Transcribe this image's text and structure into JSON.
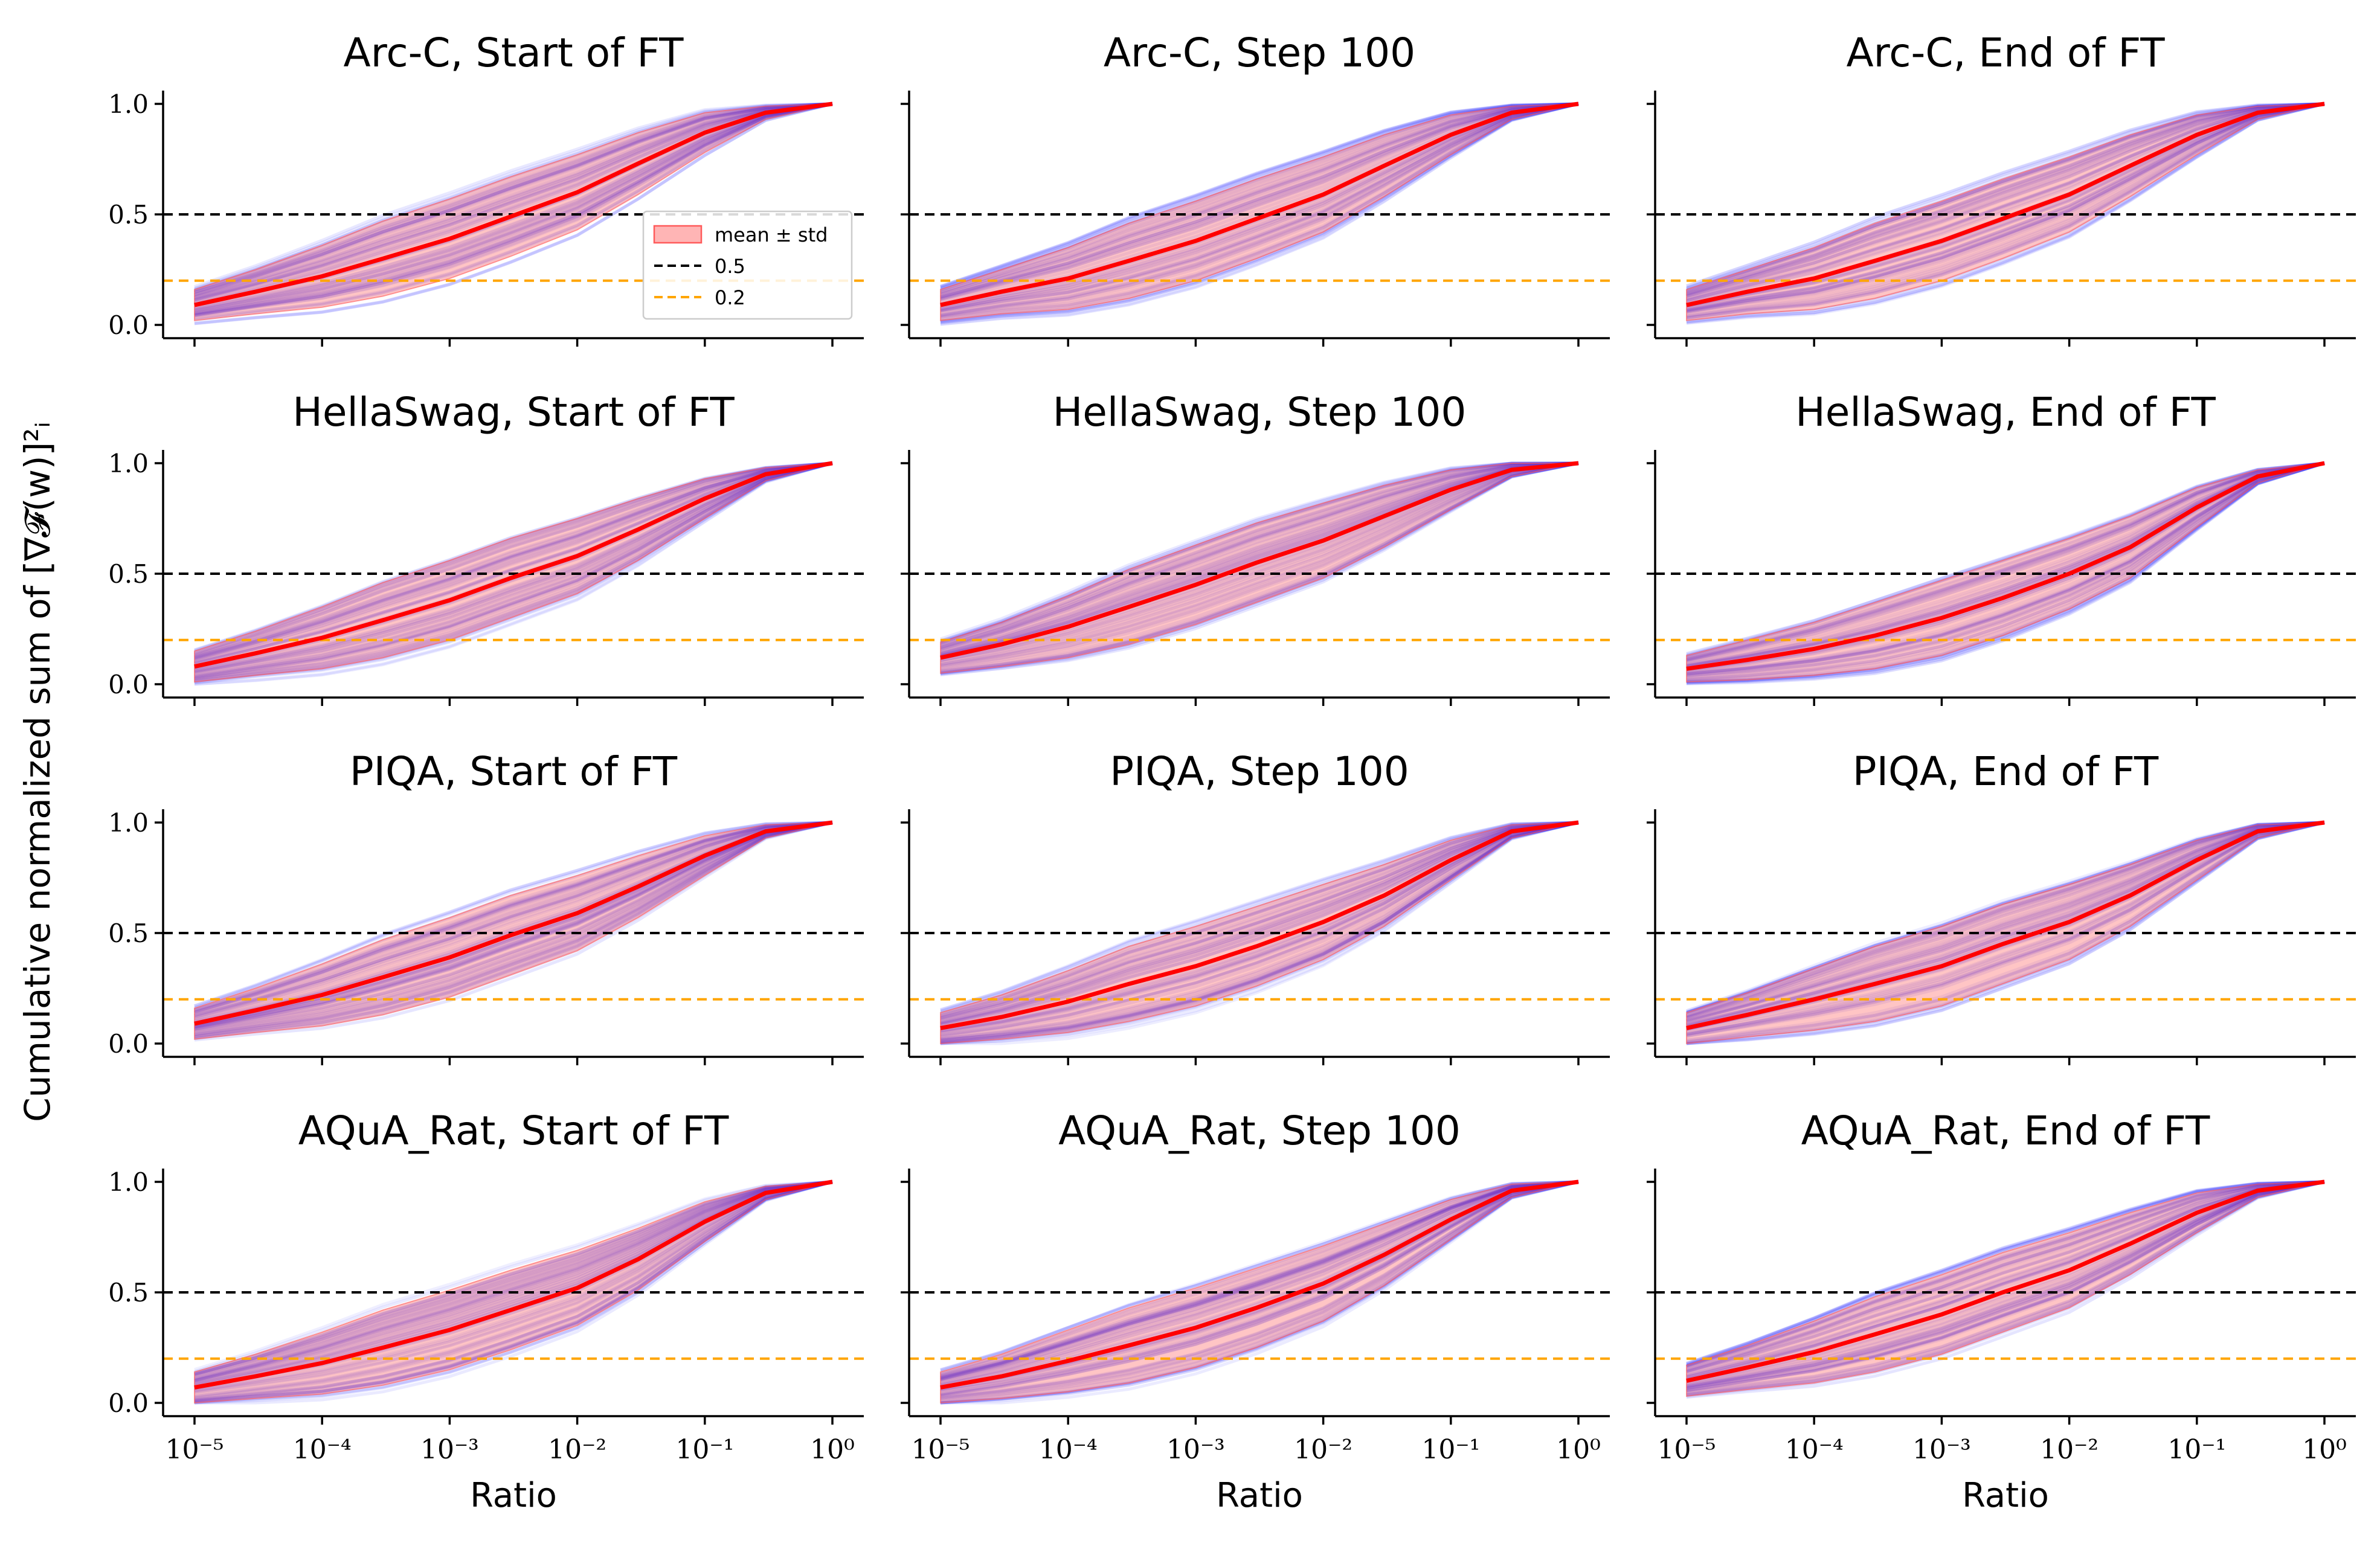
{
  "figure": {
    "ylabel": "Cumulative normalized sum of [∇𝓕(w)]²ᵢ",
    "xlabel": "Ratio"
  },
  "legend": {
    "placement": "inside first panel, lower right",
    "entries": [
      {
        "label": "mean ± std",
        "kind": "band"
      },
      {
        "label": "0.5",
        "kind": "dash-black"
      },
      {
        "label": "0.2",
        "kind": "dash-orange"
      }
    ]
  },
  "colors": {
    "mean": "#ff0000",
    "band": "#ff5a5a",
    "samples": "#1a1aff",
    "ref_black": "#000000",
    "ref_orange": "#ffa500",
    "axis": "#000000"
  },
  "chart_data": [
    {
      "type": "line",
      "title": "Arc-C, Start of FT",
      "row": 0,
      "col": 0,
      "xscale": "log",
      "xlim": [
        1e-05,
        1
      ],
      "ylim": [
        0,
        1
      ],
      "x": [
        1e-05,
        3e-05,
        0.0001,
        0.0003,
        0.001,
        0.003,
        0.01,
        0.03,
        0.1,
        0.3,
        1
      ],
      "mean": [
        0.09,
        0.15,
        0.22,
        0.3,
        0.39,
        0.49,
        0.6,
        0.73,
        0.87,
        0.96,
        1.0
      ],
      "std": [
        0.07,
        0.1,
        0.14,
        0.17,
        0.18,
        0.18,
        0.17,
        0.14,
        0.09,
        0.03,
        0
      ],
      "hlines": [
        0.5,
        0.2
      ],
      "yticks": [
        "0.0",
        "0.5",
        "1.0"
      ],
      "xticks": [
        "10⁻⁵",
        "10⁻⁴",
        "10⁻³",
        "10⁻²",
        "10⁻¹",
        "10⁰"
      ],
      "xlabel": "",
      "legend": true
    },
    {
      "type": "line",
      "title": "Arc-C, Step 100",
      "row": 0,
      "col": 1,
      "xscale": "log",
      "xlim": [
        1e-05,
        1
      ],
      "ylim": [
        0,
        1
      ],
      "x": [
        1e-05,
        3e-05,
        0.0001,
        0.0003,
        0.001,
        0.003,
        0.01,
        0.03,
        0.1,
        0.3,
        1
      ],
      "mean": [
        0.09,
        0.15,
        0.21,
        0.29,
        0.38,
        0.48,
        0.59,
        0.72,
        0.86,
        0.96,
        1.0
      ],
      "std": [
        0.07,
        0.1,
        0.14,
        0.17,
        0.18,
        0.18,
        0.17,
        0.14,
        0.09,
        0.03,
        0
      ],
      "hlines": [
        0.5,
        0.2
      ],
      "yticks": [],
      "xticks": [
        "10⁻⁵",
        "10⁻⁴",
        "10⁻³",
        "10⁻²",
        "10⁻¹",
        "10⁰"
      ],
      "xlabel": ""
    },
    {
      "type": "line",
      "title": "Arc-C, End of FT",
      "row": 0,
      "col": 2,
      "xscale": "log",
      "xlim": [
        1e-05,
        1
      ],
      "ylim": [
        0,
        1
      ],
      "x": [
        1e-05,
        3e-05,
        0.0001,
        0.0003,
        0.001,
        0.003,
        0.01,
        0.03,
        0.1,
        0.3,
        1
      ],
      "mean": [
        0.09,
        0.15,
        0.21,
        0.29,
        0.38,
        0.48,
        0.59,
        0.72,
        0.86,
        0.96,
        1.0
      ],
      "std": [
        0.07,
        0.1,
        0.14,
        0.17,
        0.18,
        0.18,
        0.17,
        0.14,
        0.09,
        0.03,
        0
      ],
      "hlines": [
        0.5,
        0.2
      ],
      "yticks": [],
      "xticks": [
        "10⁻⁵",
        "10⁻⁴",
        "10⁻³",
        "10⁻²",
        "10⁻¹",
        "10⁰"
      ],
      "xlabel": ""
    },
    {
      "type": "line",
      "title": "HellaSwag, Start of FT",
      "row": 1,
      "col": 0,
      "xscale": "log",
      "xlim": [
        1e-05,
        1
      ],
      "ylim": [
        0,
        1
      ],
      "x": [
        1e-05,
        3e-05,
        0.0001,
        0.0003,
        0.001,
        0.003,
        0.01,
        0.03,
        0.1,
        0.3,
        1
      ],
      "mean": [
        0.08,
        0.14,
        0.21,
        0.29,
        0.38,
        0.48,
        0.58,
        0.7,
        0.84,
        0.95,
        1.0
      ],
      "std": [
        0.07,
        0.1,
        0.14,
        0.17,
        0.18,
        0.18,
        0.17,
        0.14,
        0.09,
        0.03,
        0
      ],
      "hlines": [
        0.5,
        0.2
      ],
      "yticks": [
        "0.0",
        "0.5",
        "1.0"
      ],
      "xticks": [
        "10⁻⁵",
        "10⁻⁴",
        "10⁻³",
        "10⁻²",
        "10⁻¹",
        "10⁰"
      ],
      "xlabel": ""
    },
    {
      "type": "line",
      "title": "HellaSwag, Step 100",
      "row": 1,
      "col": 1,
      "xscale": "log",
      "xlim": [
        1e-05,
        1
      ],
      "ylim": [
        0,
        1
      ],
      "x": [
        1e-05,
        3e-05,
        0.0001,
        0.0003,
        0.001,
        0.003,
        0.01,
        0.03,
        0.1,
        0.3,
        1
      ],
      "mean": [
        0.12,
        0.18,
        0.26,
        0.35,
        0.45,
        0.55,
        0.65,
        0.76,
        0.88,
        0.97,
        1.0
      ],
      "std": [
        0.07,
        0.1,
        0.14,
        0.17,
        0.18,
        0.18,
        0.17,
        0.14,
        0.09,
        0.03,
        0
      ],
      "hlines": [
        0.5,
        0.2
      ],
      "yticks": [],
      "xticks": [
        "10⁻⁵",
        "10⁻⁴",
        "10⁻³",
        "10⁻²",
        "10⁻¹",
        "10⁰"
      ],
      "xlabel": ""
    },
    {
      "type": "line",
      "title": "HellaSwag, End of FT",
      "row": 1,
      "col": 2,
      "xscale": "log",
      "xlim": [
        1e-05,
        1
      ],
      "ylim": [
        0,
        1
      ],
      "x": [
        1e-05,
        3e-05,
        0.0001,
        0.0003,
        0.001,
        0.003,
        0.01,
        0.03,
        0.1,
        0.3,
        1
      ],
      "mean": [
        0.07,
        0.11,
        0.16,
        0.22,
        0.3,
        0.39,
        0.5,
        0.62,
        0.8,
        0.94,
        1.0
      ],
      "std": [
        0.06,
        0.09,
        0.12,
        0.15,
        0.17,
        0.17,
        0.16,
        0.14,
        0.09,
        0.03,
        0
      ],
      "hlines": [
        0.5,
        0.2
      ],
      "yticks": [],
      "xticks": [
        "10⁻⁵",
        "10⁻⁴",
        "10⁻³",
        "10⁻²",
        "10⁻¹",
        "10⁰"
      ],
      "xlabel": ""
    },
    {
      "type": "line",
      "title": "PIQA, Start of FT",
      "row": 2,
      "col": 0,
      "xscale": "log",
      "xlim": [
        1e-05,
        1
      ],
      "ylim": [
        0,
        1
      ],
      "x": [
        1e-05,
        3e-05,
        0.0001,
        0.0003,
        0.001,
        0.003,
        0.01,
        0.03,
        0.1,
        0.3,
        1
      ],
      "mean": [
        0.09,
        0.15,
        0.22,
        0.3,
        0.39,
        0.49,
        0.59,
        0.71,
        0.85,
        0.96,
        1.0
      ],
      "std": [
        0.07,
        0.1,
        0.14,
        0.17,
        0.18,
        0.18,
        0.17,
        0.14,
        0.09,
        0.03,
        0
      ],
      "hlines": [
        0.5,
        0.2
      ],
      "yticks": [
        "0.0",
        "0.5",
        "1.0"
      ],
      "xticks": [
        "10⁻⁵",
        "10⁻⁴",
        "10⁻³",
        "10⁻²",
        "10⁻¹",
        "10⁰"
      ],
      "xlabel": ""
    },
    {
      "type": "line",
      "title": "PIQA, Step 100",
      "row": 2,
      "col": 1,
      "xscale": "log",
      "xlim": [
        1e-05,
        1
      ],
      "ylim": [
        0,
        1
      ],
      "x": [
        1e-05,
        3e-05,
        0.0001,
        0.0003,
        0.001,
        0.003,
        0.01,
        0.03,
        0.1,
        0.3,
        1
      ],
      "mean": [
        0.07,
        0.12,
        0.19,
        0.27,
        0.35,
        0.44,
        0.55,
        0.67,
        0.83,
        0.96,
        1.0
      ],
      "std": [
        0.07,
        0.1,
        0.14,
        0.17,
        0.18,
        0.18,
        0.17,
        0.14,
        0.09,
        0.03,
        0
      ],
      "hlines": [
        0.5,
        0.2
      ],
      "yticks": [],
      "xticks": [
        "10⁻⁵",
        "10⁻⁴",
        "10⁻³",
        "10⁻²",
        "10⁻¹",
        "10⁰"
      ],
      "xlabel": ""
    },
    {
      "type": "line",
      "title": "PIQA, End of FT",
      "row": 2,
      "col": 2,
      "xscale": "log",
      "xlim": [
        1e-05,
        1
      ],
      "ylim": [
        0,
        1
      ],
      "x": [
        1e-05,
        3e-05,
        0.0001,
        0.0003,
        0.001,
        0.003,
        0.01,
        0.03,
        0.1,
        0.3,
        1
      ],
      "mean": [
        0.07,
        0.13,
        0.2,
        0.27,
        0.35,
        0.45,
        0.55,
        0.67,
        0.83,
        0.96,
        1.0
      ],
      "std": [
        0.07,
        0.1,
        0.14,
        0.17,
        0.18,
        0.18,
        0.17,
        0.14,
        0.09,
        0.03,
        0
      ],
      "hlines": [
        0.5,
        0.2
      ],
      "yticks": [],
      "xticks": [
        "10⁻⁵",
        "10⁻⁴",
        "10⁻³",
        "10⁻²",
        "10⁻¹",
        "10⁰"
      ],
      "xlabel": ""
    },
    {
      "type": "line",
      "title": "AQuA_Rat, Start of FT",
      "row": 3,
      "col": 0,
      "xscale": "log",
      "xlim": [
        1e-05,
        1
      ],
      "ylim": [
        0,
        1
      ],
      "x": [
        1e-05,
        3e-05,
        0.0001,
        0.0003,
        0.001,
        0.003,
        0.01,
        0.03,
        0.1,
        0.3,
        1
      ],
      "mean": [
        0.07,
        0.12,
        0.18,
        0.25,
        0.33,
        0.42,
        0.52,
        0.65,
        0.82,
        0.95,
        1.0
      ],
      "std": [
        0.07,
        0.1,
        0.14,
        0.17,
        0.18,
        0.18,
        0.17,
        0.14,
        0.09,
        0.03,
        0
      ],
      "hlines": [
        0.5,
        0.2
      ],
      "yticks": [
        "0.0",
        "0.5",
        "1.0"
      ],
      "xticks": [
        "10⁻⁵",
        "10⁻⁴",
        "10⁻³",
        "10⁻²",
        "10⁻¹",
        "10⁰"
      ],
      "xlabel": "Ratio"
    },
    {
      "type": "line",
      "title": "AQuA_Rat, Step 100",
      "row": 3,
      "col": 1,
      "xscale": "log",
      "xlim": [
        1e-05,
        1
      ],
      "ylim": [
        0,
        1
      ],
      "x": [
        1e-05,
        3e-05,
        0.0001,
        0.0003,
        0.001,
        0.003,
        0.01,
        0.03,
        0.1,
        0.3,
        1
      ],
      "mean": [
        0.07,
        0.12,
        0.19,
        0.26,
        0.34,
        0.43,
        0.54,
        0.67,
        0.83,
        0.96,
        1.0
      ],
      "std": [
        0.07,
        0.1,
        0.14,
        0.17,
        0.18,
        0.18,
        0.17,
        0.14,
        0.09,
        0.03,
        0
      ],
      "hlines": [
        0.5,
        0.2
      ],
      "yticks": [],
      "xticks": [
        "10⁻⁵",
        "10⁻⁴",
        "10⁻³",
        "10⁻²",
        "10⁻¹",
        "10⁰"
      ],
      "xlabel": "Ratio"
    },
    {
      "type": "line",
      "title": "AQuA_Rat, End of FT",
      "row": 3,
      "col": 2,
      "xscale": "log",
      "xlim": [
        1e-05,
        1
      ],
      "ylim": [
        0,
        1
      ],
      "x": [
        1e-05,
        3e-05,
        0.0001,
        0.0003,
        0.001,
        0.003,
        0.01,
        0.03,
        0.1,
        0.3,
        1
      ],
      "mean": [
        0.1,
        0.16,
        0.23,
        0.31,
        0.4,
        0.5,
        0.6,
        0.72,
        0.86,
        0.96,
        1.0
      ],
      "std": [
        0.07,
        0.1,
        0.14,
        0.17,
        0.18,
        0.18,
        0.17,
        0.14,
        0.09,
        0.03,
        0
      ],
      "hlines": [
        0.5,
        0.2
      ],
      "yticks": [],
      "xticks": [
        "10⁻⁵",
        "10⁻⁴",
        "10⁻³",
        "10⁻²",
        "10⁻¹",
        "10⁰"
      ],
      "xlabel": "Ratio"
    }
  ]
}
